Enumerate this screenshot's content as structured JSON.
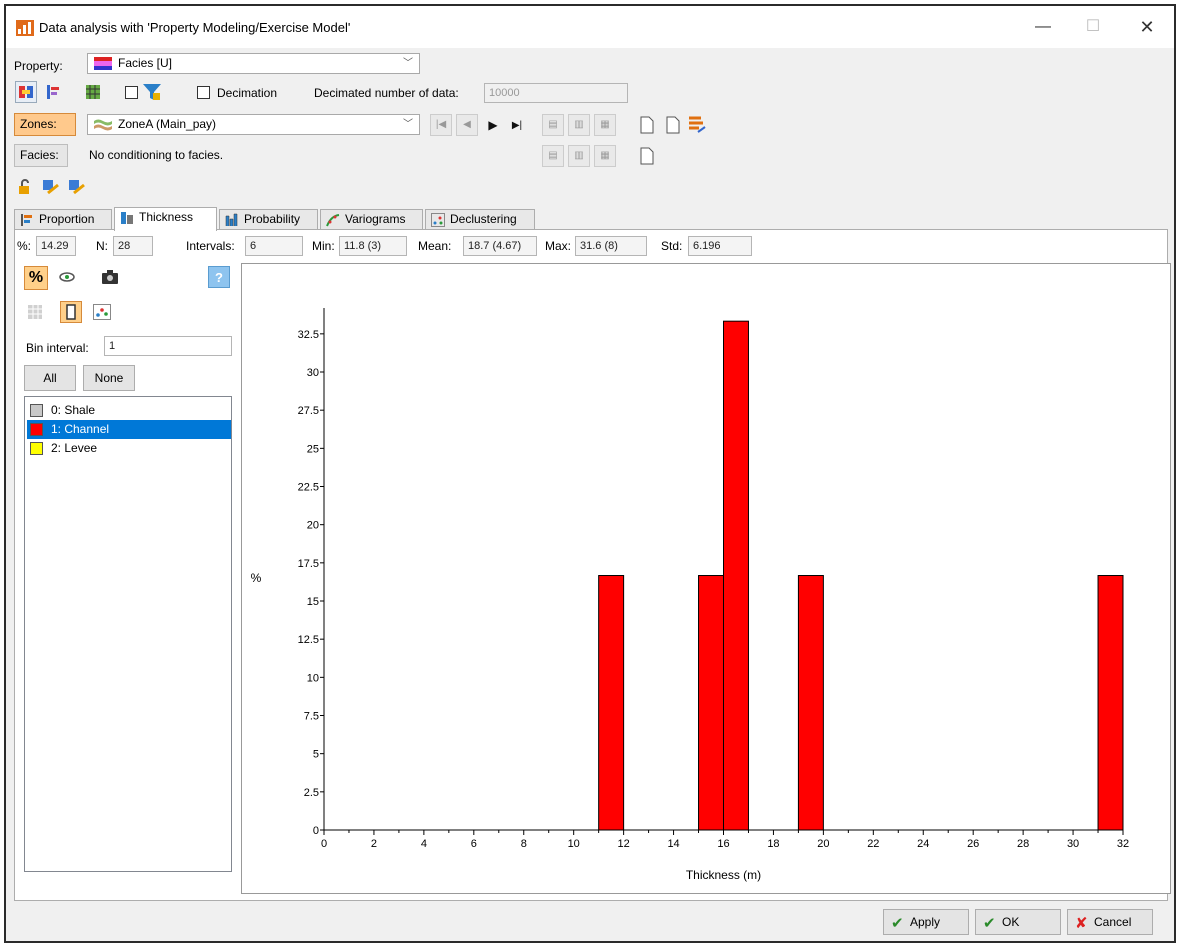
{
  "window": {
    "title": "Data analysis with 'Property Modeling/Exercise Model'",
    "controls": {
      "minimize": "—",
      "maximize": "☐",
      "close": "✕"
    }
  },
  "property": {
    "label": "Property:",
    "value": "Facies [U]"
  },
  "options": {
    "decimation_label": "Decimation",
    "decimated_number_label": "Decimated number of data:",
    "decimated_number_value": "10000"
  },
  "zones": {
    "button_label": "Zones:",
    "value": "ZoneA (Main_pay)"
  },
  "facies": {
    "button_label": "Facies:",
    "value": "No conditioning to facies."
  },
  "tabs": [
    {
      "label": "Proportion",
      "icon": "proportion-icon"
    },
    {
      "label": "Thickness",
      "icon": "thickness-icon",
      "active": true
    },
    {
      "label": "Probability",
      "icon": "probability-icon"
    },
    {
      "label": "Variograms",
      "icon": "variogram-icon"
    },
    {
      "label": "Declustering",
      "icon": "declustering-icon"
    }
  ],
  "stats": {
    "percent_label": "%:",
    "percent_value": "14.29",
    "n_label": "N:",
    "n_value": "28",
    "intervals_label": "Intervals:",
    "intervals_value": "6",
    "min_label": "Min:",
    "min_value": "11.8 (3)",
    "mean_label": "Mean:",
    "mean_value": "18.7 (4.67)",
    "max_label": "Max:",
    "max_value": "31.6 (8)",
    "std_label": "Std:",
    "std_value": "6.196"
  },
  "left_panel": {
    "bin_interval_label": "Bin interval:",
    "bin_interval_value": "1",
    "all_button": "All",
    "none_button": "None",
    "facies_items": [
      {
        "label": "0: Shale",
        "color": "#c8c8c8",
        "selected": false
      },
      {
        "label": "1: Channel",
        "color": "#ff0000",
        "selected": true
      },
      {
        "label": "2: Levee",
        "color": "#ffff00",
        "selected": false
      }
    ]
  },
  "chart_data": {
    "type": "bar",
    "xlabel": "Thickness (m)",
    "ylabel": "%",
    "xlim": [
      0,
      32
    ],
    "ylim": [
      0,
      33.33
    ],
    "x_ticks": [
      0,
      2,
      4,
      6,
      8,
      10,
      12,
      14,
      16,
      18,
      20,
      22,
      24,
      26,
      28,
      30,
      32
    ],
    "y_ticks": [
      0,
      2.5,
      5,
      7.5,
      10,
      12.5,
      15,
      17.5,
      20,
      22.5,
      25,
      27.5,
      30,
      32.5
    ],
    "bin_width": 1,
    "bins": [
      {
        "start": 11,
        "value": 16.67
      },
      {
        "start": 15,
        "value": 16.67
      },
      {
        "start": 16,
        "value": 33.33
      },
      {
        "start": 19,
        "value": 16.67
      },
      {
        "start": 31,
        "value": 16.67
      }
    ],
    "bar_color": "#ff0000"
  },
  "footer": {
    "apply": "Apply",
    "ok": "OK",
    "cancel": "Cancel"
  }
}
